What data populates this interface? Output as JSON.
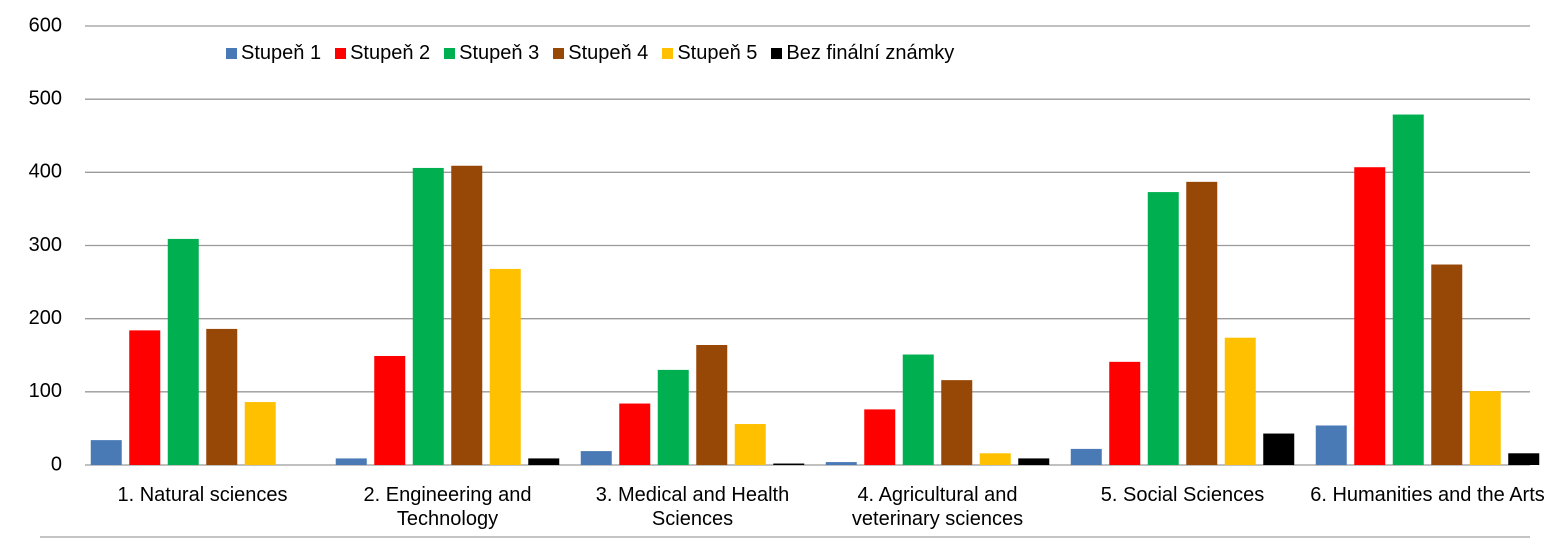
{
  "chart_data": {
    "type": "bar",
    "categories": [
      "1. Natural sciences",
      "2. Engineering and Technology",
      "3. Medical and Health Sciences",
      "4. Agricultural and veterinary sciences",
      "5. Social Sciences",
      "6. Humanities and the Arts"
    ],
    "series": [
      {
        "name": "Stupeň 1",
        "color": "#4a7ab5",
        "values": [
          34,
          9,
          19,
          4,
          22,
          54
        ]
      },
      {
        "name": "Stupeň 2",
        "color": "#ff0000",
        "values": [
          184,
          149,
          84,
          76,
          141,
          407
        ]
      },
      {
        "name": "Stupeň 3",
        "color": "#00b050",
        "values": [
          309,
          406,
          130,
          151,
          373,
          479
        ]
      },
      {
        "name": "Stupeň 4",
        "color": "#974706",
        "values": [
          186,
          409,
          164,
          116,
          387,
          274
        ]
      },
      {
        "name": "Stupeň 5",
        "color": "#ffc000",
        "values": [
          86,
          268,
          56,
          16,
          174,
          101
        ]
      },
      {
        "name": "Bez finální známky",
        "color": "#000000",
        "values": [
          0,
          9,
          2,
          9,
          43,
          16
        ]
      }
    ],
    "ylim": [
      0,
      600
    ],
    "yticks": [
      0,
      100,
      200,
      300,
      400,
      500,
      600
    ],
    "grid": true,
    "legend": "top"
  }
}
